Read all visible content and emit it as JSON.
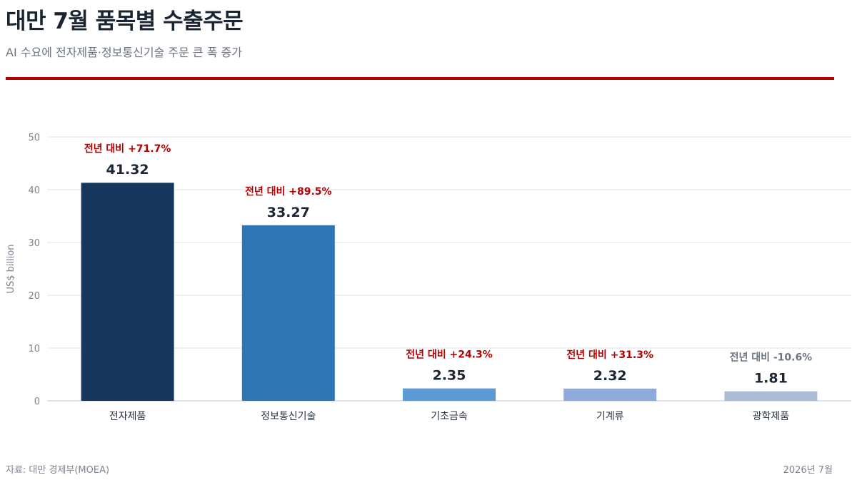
{
  "header": {
    "title": "대만 7월 품목별 수출주문",
    "subtitle": "AI 수요에 전자제품·정보통신기술 주문 큰 폭 증가"
  },
  "footer": {
    "source": "자료: 대만 경제부(MOEA)",
    "date": "2026년 7월"
  },
  "colors": {
    "accent_rule": "#b30000",
    "positive_label": "#b30000",
    "negative_label": "#6b7480",
    "value_label": "#1c2533",
    "grid": "#dde3ea",
    "axis_text": "#7b8390"
  },
  "chart_data": {
    "type": "bar",
    "categories": [
      "전자제품",
      "정보통신기술",
      "기초금속",
      "기계류",
      "광학제품"
    ],
    "values": [
      41.32,
      33.27,
      2.35,
      2.32,
      1.81
    ],
    "value_labels": [
      "41.32",
      "33.27",
      "2.35",
      "2.32",
      "1.81"
    ],
    "yoy_labels": [
      "전년 대비 +71.7%",
      "전년 대비 +89.5%",
      "전년 대비 +24.3%",
      "전년 대비 +31.3%",
      "전년 대비 -10.6%"
    ],
    "yoy_change": [
      71.7,
      89.5,
      24.3,
      31.3,
      -10.6
    ],
    "bar_colors": [
      "#17375e",
      "#2e75b6",
      "#5b9bd5",
      "#8faadc",
      "#a9bcd6"
    ],
    "ylabel": "US$ billion",
    "ylim": [
      0,
      50
    ],
    "yticks": [
      0,
      10,
      20,
      30,
      40,
      50
    ],
    "grid": true
  }
}
